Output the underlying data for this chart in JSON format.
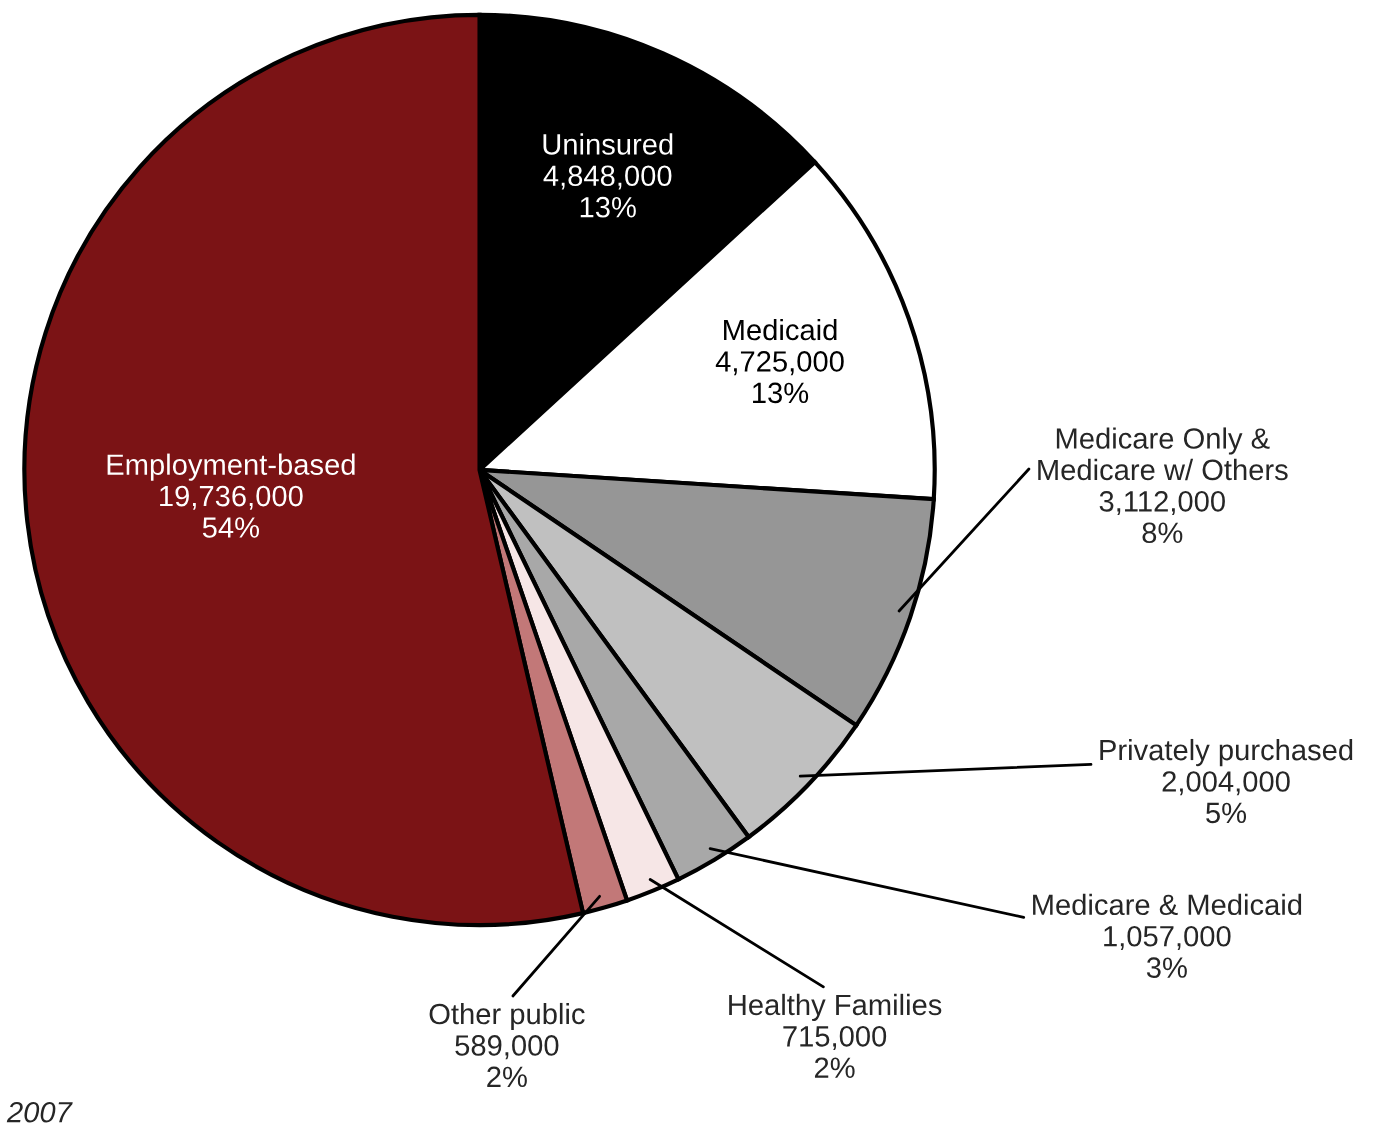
{
  "chart_data": {
    "type": "pie",
    "categories": [
      "Uninsured",
      "Medicaid",
      "Medicare Only &\nMedicare w/ Others",
      "Privately purchased",
      "Medicare & Medicaid",
      "Healthy Families",
      "Other public",
      "Employment-based"
    ],
    "values": [
      4848000,
      4725000,
      3112000,
      2004000,
      1057000,
      715000,
      589000,
      19736000
    ],
    "value_labels": [
      "4,848,000\n13%",
      "4,725,000\n13%",
      "3,112,000\n8%",
      "2,004,000\n5%",
      "1,057,000\n3%",
      "715,000\n2%",
      "589,000\n2%",
      "19,736,000\n54%"
    ],
    "colors": [
      "#000000",
      "#ffffff",
      "#969696",
      "#c0c0c0",
      "#a8a8a8",
      "#f6e6e6",
      "#c27878",
      "#7b1315"
    ],
    "annotations": [
      "2007"
    ]
  }
}
